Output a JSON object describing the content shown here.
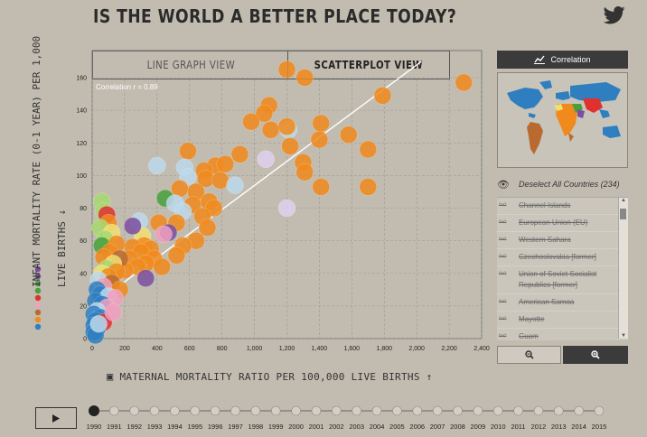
{
  "header": {
    "title": "IS THE WORLD A BETTER PLACE TODAY?",
    "share_icon": "twitter-icon"
  },
  "tabs": [
    {
      "label": "LINE GRAPH VIEW",
      "active": false
    },
    {
      "label": "SCATTERPLOT VIEW",
      "active": true
    }
  ],
  "chart": {
    "correlation_label": "Correlation r = 0.89",
    "y_label": "INFANT MORTALITY RATE (0-1 YEAR) PER 1,000",
    "y_label_line2": "LIVE BIRTHS ↓",
    "x_label": "MATERNAL MORTALITY RATIO PER 100,000 LIVE BIRTHS ↑"
  },
  "chart_data": {
    "type": "scatter",
    "xlim": [
      0,
      2400
    ],
    "ylim": [
      0,
      170
    ],
    "x_ticks": [
      "0",
      "200",
      "400",
      "600",
      "800",
      "1,000",
      "1,200",
      "1,400",
      "1,600",
      "1,800",
      "2,000",
      "2,200",
      "2,400"
    ],
    "y_ticks": [
      "0",
      "20",
      "40",
      "60",
      "80",
      "100",
      "120",
      "140",
      "160"
    ],
    "trendline": [
      [
        0,
        20
      ],
      [
        2030,
        170
      ]
    ],
    "colors": {
      "orange": "#f08a1c",
      "lightblue": "#bcd8ec",
      "blue": "#2f7fc0",
      "green": "#46a03c",
      "lightgreen": "#a8d870",
      "purple": "#7b4fa0",
      "red": "#e03030",
      "pink": "#f0a0c0",
      "brown": "#b86a30",
      "yellow": "#f0e070",
      "lavender": "#e0d0f0"
    },
    "points": [
      {
        "x": 1200,
        "y": 165,
        "c": "orange"
      },
      {
        "x": 1310,
        "y": 160,
        "c": "orange"
      },
      {
        "x": 2290,
        "y": 157,
        "c": "orange"
      },
      {
        "x": 1090,
        "y": 143,
        "c": "orange"
      },
      {
        "x": 1060,
        "y": 138,
        "c": "orange"
      },
      {
        "x": 1790,
        "y": 149,
        "c": "orange"
      },
      {
        "x": 980,
        "y": 133,
        "c": "orange"
      },
      {
        "x": 1100,
        "y": 128,
        "c": "orange"
      },
      {
        "x": 1210,
        "y": 128,
        "c": "lightblue"
      },
      {
        "x": 1200,
        "y": 130,
        "c": "orange"
      },
      {
        "x": 1410,
        "y": 132,
        "c": "orange"
      },
      {
        "x": 1580,
        "y": 125,
        "c": "orange"
      },
      {
        "x": 1400,
        "y": 122,
        "c": "orange"
      },
      {
        "x": 1220,
        "y": 118,
        "c": "orange"
      },
      {
        "x": 1700,
        "y": 116,
        "c": "orange"
      },
      {
        "x": 1070,
        "y": 110,
        "c": "lavender"
      },
      {
        "x": 1300,
        "y": 108,
        "c": "orange"
      },
      {
        "x": 1310,
        "y": 102,
        "c": "orange"
      },
      {
        "x": 1410,
        "y": 93,
        "c": "orange"
      },
      {
        "x": 1700,
        "y": 93,
        "c": "orange"
      },
      {
        "x": 1200,
        "y": 80,
        "c": "lavender"
      },
      {
        "x": 910,
        "y": 113,
        "c": "orange"
      },
      {
        "x": 590,
        "y": 115,
        "c": "orange"
      },
      {
        "x": 760,
        "y": 106,
        "c": "orange"
      },
      {
        "x": 820,
        "y": 107,
        "c": "orange"
      },
      {
        "x": 400,
        "y": 106,
        "c": "lightblue"
      },
      {
        "x": 570,
        "y": 105,
        "c": "lightblue"
      },
      {
        "x": 690,
        "y": 103,
        "c": "orange"
      },
      {
        "x": 590,
        "y": 99,
        "c": "lightblue"
      },
      {
        "x": 700,
        "y": 98,
        "c": "orange"
      },
      {
        "x": 790,
        "y": 97,
        "c": "orange"
      },
      {
        "x": 880,
        "y": 94,
        "c": "lightblue"
      },
      {
        "x": 540,
        "y": 92,
        "c": "orange"
      },
      {
        "x": 640,
        "y": 90,
        "c": "orange"
      },
      {
        "x": 450,
        "y": 86,
        "c": "green"
      },
      {
        "x": 720,
        "y": 84,
        "c": "orange"
      },
      {
        "x": 510,
        "y": 83,
        "c": "lightblue"
      },
      {
        "x": 620,
        "y": 82,
        "c": "orange"
      },
      {
        "x": 750,
        "y": 80,
        "c": "orange"
      },
      {
        "x": 560,
        "y": 78,
        "c": "lightblue"
      },
      {
        "x": 680,
        "y": 75,
        "c": "orange"
      },
      {
        "x": 410,
        "y": 71,
        "c": "orange"
      },
      {
        "x": 520,
        "y": 71,
        "c": "orange"
      },
      {
        "x": 290,
        "y": 72,
        "c": "lightblue"
      },
      {
        "x": 710,
        "y": 68,
        "c": "orange"
      },
      {
        "x": 470,
        "y": 65,
        "c": "purple"
      },
      {
        "x": 440,
        "y": 64,
        "c": "pink"
      },
      {
        "x": 310,
        "y": 63,
        "c": "yellow"
      },
      {
        "x": 640,
        "y": 60,
        "c": "orange"
      },
      {
        "x": 560,
        "y": 57,
        "c": "orange"
      },
      {
        "x": 520,
        "y": 51,
        "c": "orange"
      },
      {
        "x": 250,
        "y": 69,
        "c": "purple"
      },
      {
        "x": 320,
        "y": 57,
        "c": "orange"
      },
      {
        "x": 250,
        "y": 56,
        "c": "orange"
      },
      {
        "x": 360,
        "y": 55,
        "c": "orange"
      },
      {
        "x": 300,
        "y": 53,
        "c": "orange"
      },
      {
        "x": 380,
        "y": 49,
        "c": "orange"
      },
      {
        "x": 230,
        "y": 49,
        "c": "orange"
      },
      {
        "x": 330,
        "y": 46,
        "c": "orange"
      },
      {
        "x": 280,
        "y": 44,
        "c": "orange"
      },
      {
        "x": 430,
        "y": 44,
        "c": "orange"
      },
      {
        "x": 200,
        "y": 42,
        "c": "orange"
      },
      {
        "x": 330,
        "y": 37,
        "c": "purple"
      },
      {
        "x": 60,
        "y": 84,
        "c": "lightgreen"
      },
      {
        "x": 70,
        "y": 78,
        "c": "lightgreen"
      },
      {
        "x": 90,
        "y": 76,
        "c": "red"
      },
      {
        "x": 100,
        "y": 71,
        "c": "orange"
      },
      {
        "x": 50,
        "y": 68,
        "c": "lightgreen"
      },
      {
        "x": 120,
        "y": 65,
        "c": "yellow"
      },
      {
        "x": 80,
        "y": 61,
        "c": "lightgreen"
      },
      {
        "x": 60,
        "y": 57,
        "c": "green"
      },
      {
        "x": 150,
        "y": 58,
        "c": "orange"
      },
      {
        "x": 110,
        "y": 53,
        "c": "orange"
      },
      {
        "x": 70,
        "y": 50,
        "c": "orange"
      },
      {
        "x": 170,
        "y": 49,
        "c": "brown"
      },
      {
        "x": 130,
        "y": 46,
        "c": "yellow"
      },
      {
        "x": 90,
        "y": 43,
        "c": "lightgreen"
      },
      {
        "x": 150,
        "y": 41,
        "c": "orange"
      },
      {
        "x": 60,
        "y": 40,
        "c": "yellow"
      },
      {
        "x": 100,
        "y": 38,
        "c": "orange"
      },
      {
        "x": 40,
        "y": 36,
        "c": "lightblue"
      },
      {
        "x": 120,
        "y": 34,
        "c": "brown"
      },
      {
        "x": 70,
        "y": 32,
        "c": "pink"
      },
      {
        "x": 30,
        "y": 30,
        "c": "blue"
      },
      {
        "x": 170,
        "y": 30,
        "c": "orange"
      },
      {
        "x": 50,
        "y": 27,
        "c": "blue"
      },
      {
        "x": 100,
        "y": 26,
        "c": "lightblue"
      },
      {
        "x": 140,
        "y": 25,
        "c": "pink"
      },
      {
        "x": 20,
        "y": 23,
        "c": "blue"
      },
      {
        "x": 60,
        "y": 21,
        "c": "blue"
      },
      {
        "x": 90,
        "y": 19,
        "c": "pink"
      },
      {
        "x": 30,
        "y": 17,
        "c": "lightblue"
      },
      {
        "x": 10,
        "y": 15,
        "c": "blue"
      },
      {
        "x": 50,
        "y": 13,
        "c": "blue"
      },
      {
        "x": 20,
        "y": 11,
        "c": "blue"
      },
      {
        "x": 70,
        "y": 10,
        "c": "red"
      },
      {
        "x": 10,
        "y": 8,
        "c": "blue"
      },
      {
        "x": 30,
        "y": 6,
        "c": "blue"
      },
      {
        "x": 10,
        "y": 4,
        "c": "blue"
      },
      {
        "x": 20,
        "y": 2,
        "c": "blue"
      },
      {
        "x": 40,
        "y": 9,
        "c": "lightblue"
      },
      {
        "x": 130,
        "y": 16,
        "c": "pink"
      }
    ],
    "legend_dots": [
      "purple",
      "purple",
      "green",
      "green",
      "red",
      "pink",
      "brown",
      "orange",
      "blue"
    ]
  },
  "sidebar": {
    "correlation_button": "Correlation",
    "deselect_label": "Deselect All Countries (234)",
    "countries": [
      "Channel Islands",
      "European Union (EU)",
      "Western Sahara",
      "Czechoslovakia [former]",
      "Union of Soviet Socialist Republics [former]",
      "American Samoa",
      "Mayotte",
      "Guam"
    ]
  },
  "timeline": {
    "years": [
      "1990",
      "1991",
      "1992",
      "1993",
      "1994",
      "1995",
      "1996",
      "1997",
      "1998",
      "1999",
      "2000",
      "2001",
      "2002",
      "2003",
      "2004",
      "2005",
      "2006",
      "2007",
      "2008",
      "2009",
      "2010",
      "2011",
      "2012",
      "2013",
      "2014",
      "2015"
    ],
    "current_year": "1990"
  }
}
